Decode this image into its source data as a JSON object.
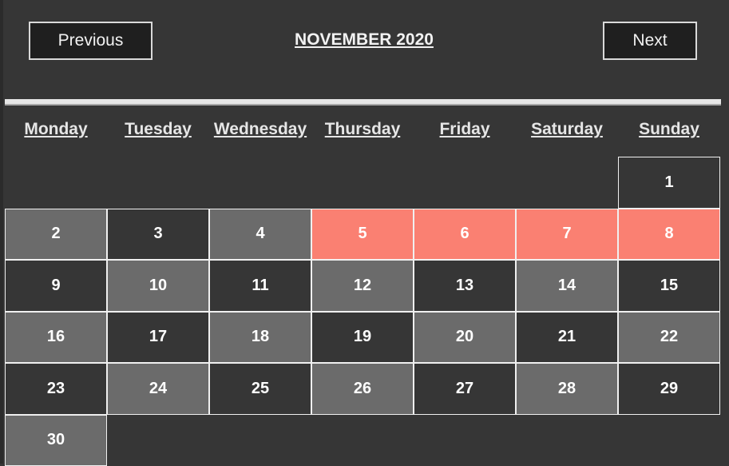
{
  "header": {
    "previous_label": "Previous",
    "next_label": "Next",
    "month_title": "NOVEMBER 2020"
  },
  "weekdays": [
    "Monday",
    "Tuesday",
    "Wednesday",
    "Thursday",
    "Friday",
    "Saturday",
    "Sunday"
  ],
  "calendar": {
    "leading_empty_cells": 6,
    "days": [
      {
        "label": "1",
        "style": "dark"
      },
      {
        "label": "2",
        "style": "gray"
      },
      {
        "label": "3",
        "style": "dark"
      },
      {
        "label": "4",
        "style": "gray"
      },
      {
        "label": "5",
        "style": "highlight"
      },
      {
        "label": "6",
        "style": "highlight"
      },
      {
        "label": "7",
        "style": "highlight"
      },
      {
        "label": "8",
        "style": "highlight"
      },
      {
        "label": "9",
        "style": "dark"
      },
      {
        "label": "10",
        "style": "gray"
      },
      {
        "label": "11",
        "style": "dark"
      },
      {
        "label": "12",
        "style": "gray"
      },
      {
        "label": "13",
        "style": "dark"
      },
      {
        "label": "14",
        "style": "gray"
      },
      {
        "label": "15",
        "style": "dark"
      },
      {
        "label": "16",
        "style": "gray"
      },
      {
        "label": "17",
        "style": "dark"
      },
      {
        "label": "18",
        "style": "gray"
      },
      {
        "label": "19",
        "style": "dark"
      },
      {
        "label": "20",
        "style": "gray"
      },
      {
        "label": "21",
        "style": "dark"
      },
      {
        "label": "22",
        "style": "gray"
      },
      {
        "label": "23",
        "style": "dark"
      },
      {
        "label": "24",
        "style": "gray"
      },
      {
        "label": "25",
        "style": "dark"
      },
      {
        "label": "26",
        "style": "gray"
      },
      {
        "label": "27",
        "style": "dark"
      },
      {
        "label": "28",
        "style": "gray"
      },
      {
        "label": "29",
        "style": "dark"
      },
      {
        "label": "30",
        "style": "gray"
      }
    ]
  },
  "colors": {
    "background": "#363636",
    "cell_gray": "#6b6b6b",
    "highlight": "#fa8072",
    "border": "#f0f0f0"
  }
}
